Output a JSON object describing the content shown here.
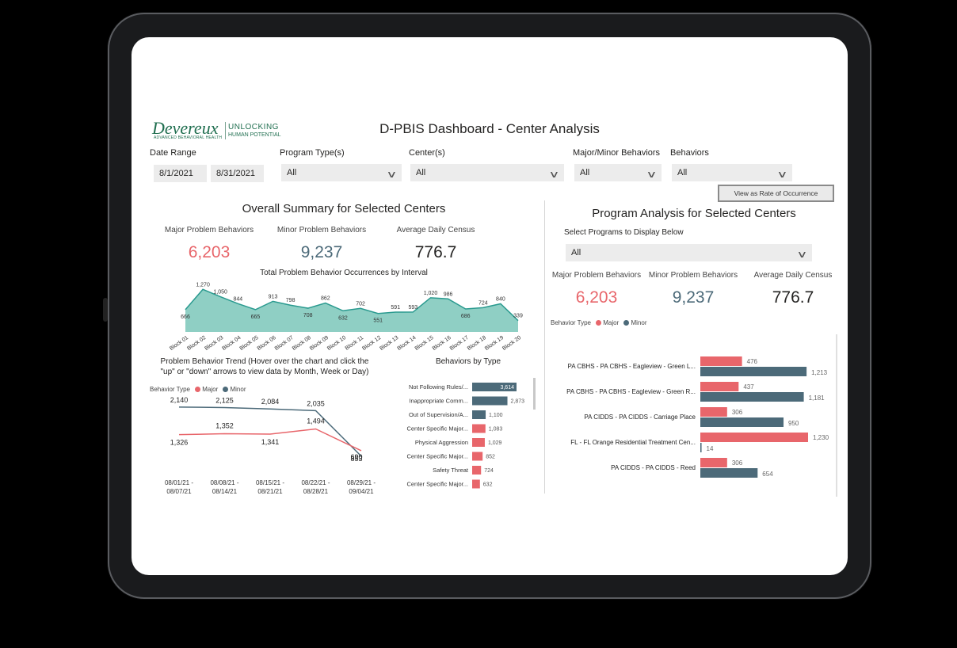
{
  "colors": {
    "major": "#e8666b",
    "minor": "#4c6a79",
    "area": "#8fcfc4",
    "areaLine": "#2a9a8f",
    "bar_blue": "#4c6a79"
  },
  "header": {
    "title": "D-PBIS Dashboard - Center Analysis",
    "logo_name": "Devereux",
    "logo_sub": "ADVANCED BEHAVIORAL HEALTH",
    "logo_tag1": "UNLOCKING",
    "logo_tag2": "HUMAN POTENTIAL"
  },
  "filters": {
    "date_range_label": "Date Range",
    "date_start": "8/1/2021",
    "date_end": "8/31/2021",
    "program_type_label": "Program Type(s)",
    "program_type_value": "All",
    "center_label": "Center(s)",
    "center_value": "All",
    "major_minor_label": "Major/Minor Behaviors",
    "major_minor_value": "All",
    "behaviors_label": "Behaviors",
    "behaviors_value": "All",
    "rate_button": "View as Rate of Occurrence"
  },
  "overall": {
    "title": "Overall Summary for Selected Centers",
    "major_label": "Major Problem Behaviors",
    "major_value": "6,203",
    "minor_label": "Minor Problem Behaviors",
    "minor_value": "9,237",
    "census_label": "Average Daily Census",
    "census_value": "776.7"
  },
  "program": {
    "title": "Program Analysis for Selected Centers",
    "select_label": "Select Programs to Display Below",
    "select_value": "All",
    "major_label": "Major Problem Behaviors",
    "major_value": "6,203",
    "minor_label": "Minor Problem Behaviors",
    "minor_value": "9,237",
    "census_label": "Average Daily Census",
    "census_value": "776.7",
    "legend_title": "Behavior Type",
    "legend_major": "Major",
    "legend_minor": "Minor"
  },
  "trend": {
    "title_line1": "Problem Behavior Trend (Hover over the chart and click the",
    "title_line2": "\"up\" or \"down\" arrows to view data by Month, Week or Day)",
    "legend_title": "Behavior Type",
    "legend_major": "Major",
    "legend_minor": "Minor"
  },
  "chart_data": [
    {
      "type": "area",
      "title": "Total Problem Behavior Occurrences by Interval",
      "categories": [
        "Block 01",
        "Block 02",
        "Block 03",
        "Block 04",
        "Block 05",
        "Block 06",
        "Block 07",
        "Block 08",
        "Block 09",
        "Block 10",
        "Block 11",
        "Block 12",
        "Block 13",
        "Block 14",
        "Block 15",
        "Block 16",
        "Block 17",
        "Block 18",
        "Block 19",
        "Block 20"
      ],
      "values": [
        666,
        1270,
        1050,
        844,
        665,
        913,
        798,
        708,
        862,
        632,
        702,
        551,
        591,
        593,
        1020,
        986,
        686,
        724,
        840,
        339
      ],
      "ylim": [
        0,
        1300
      ]
    },
    {
      "type": "line",
      "title": "",
      "categories": [
        "08/01/21 - 08/07/21",
        "08/08/21 - 08/14/21",
        "08/15/21 - 08/21/21",
        "08/22/21 - 08/28/21",
        "08/29/21 - 09/04/21"
      ],
      "series": [
        {
          "name": "Minor",
          "values": [
            2140,
            2125,
            2084,
            2035,
            690
          ]
        },
        {
          "name": "Major",
          "values": [
            1326,
            1352,
            1341,
            1494,
            853
          ]
        }
      ],
      "ylim": [
        500,
        2300
      ]
    },
    {
      "type": "bar",
      "title": "Behaviors by Type",
      "categories": [
        "Not Following Rules/...",
        "Inappropriate Comm...",
        "Out of Supervision/A...",
        "Center Specific Major...",
        "Physical Aggression",
        "Center Specific Major...",
        "Safety Threat",
        "Center Specific Major..."
      ],
      "values": [
        3614,
        2873,
        1100,
        1083,
        1029,
        852,
        724,
        632
      ],
      "value_labels": [
        "3,614",
        "2,873",
        "1,100",
        "1,083",
        "1,029",
        "852",
        "724",
        "632"
      ],
      "colors": [
        "#4c6a79",
        "#4c6a79",
        "#4c6a79",
        "#e8666b",
        "#e8666b",
        "#e8666b",
        "#e8666b",
        "#e8666b"
      ],
      "xlim": [
        0,
        3614
      ]
    },
    {
      "type": "bar",
      "title": "",
      "categories": [
        "PA CBHS - PA CBHS - Eagleview - Green L...",
        "PA CBHS - PA CBHS - Eagleview - Green R...",
        "PA CIDDS - PA CIDDS - Carriage Place",
        "FL - FL Orange Residential Treatment Cen...",
        "PA CIDDS - PA CIDDS - Reed"
      ],
      "series": [
        {
          "name": "Major",
          "values": [
            476,
            437,
            306,
            1230,
            306
          ]
        },
        {
          "name": "Minor",
          "values": [
            1213,
            1181,
            950,
            14,
            654
          ]
        }
      ],
      "xlim": [
        0,
        1230
      ]
    }
  ]
}
